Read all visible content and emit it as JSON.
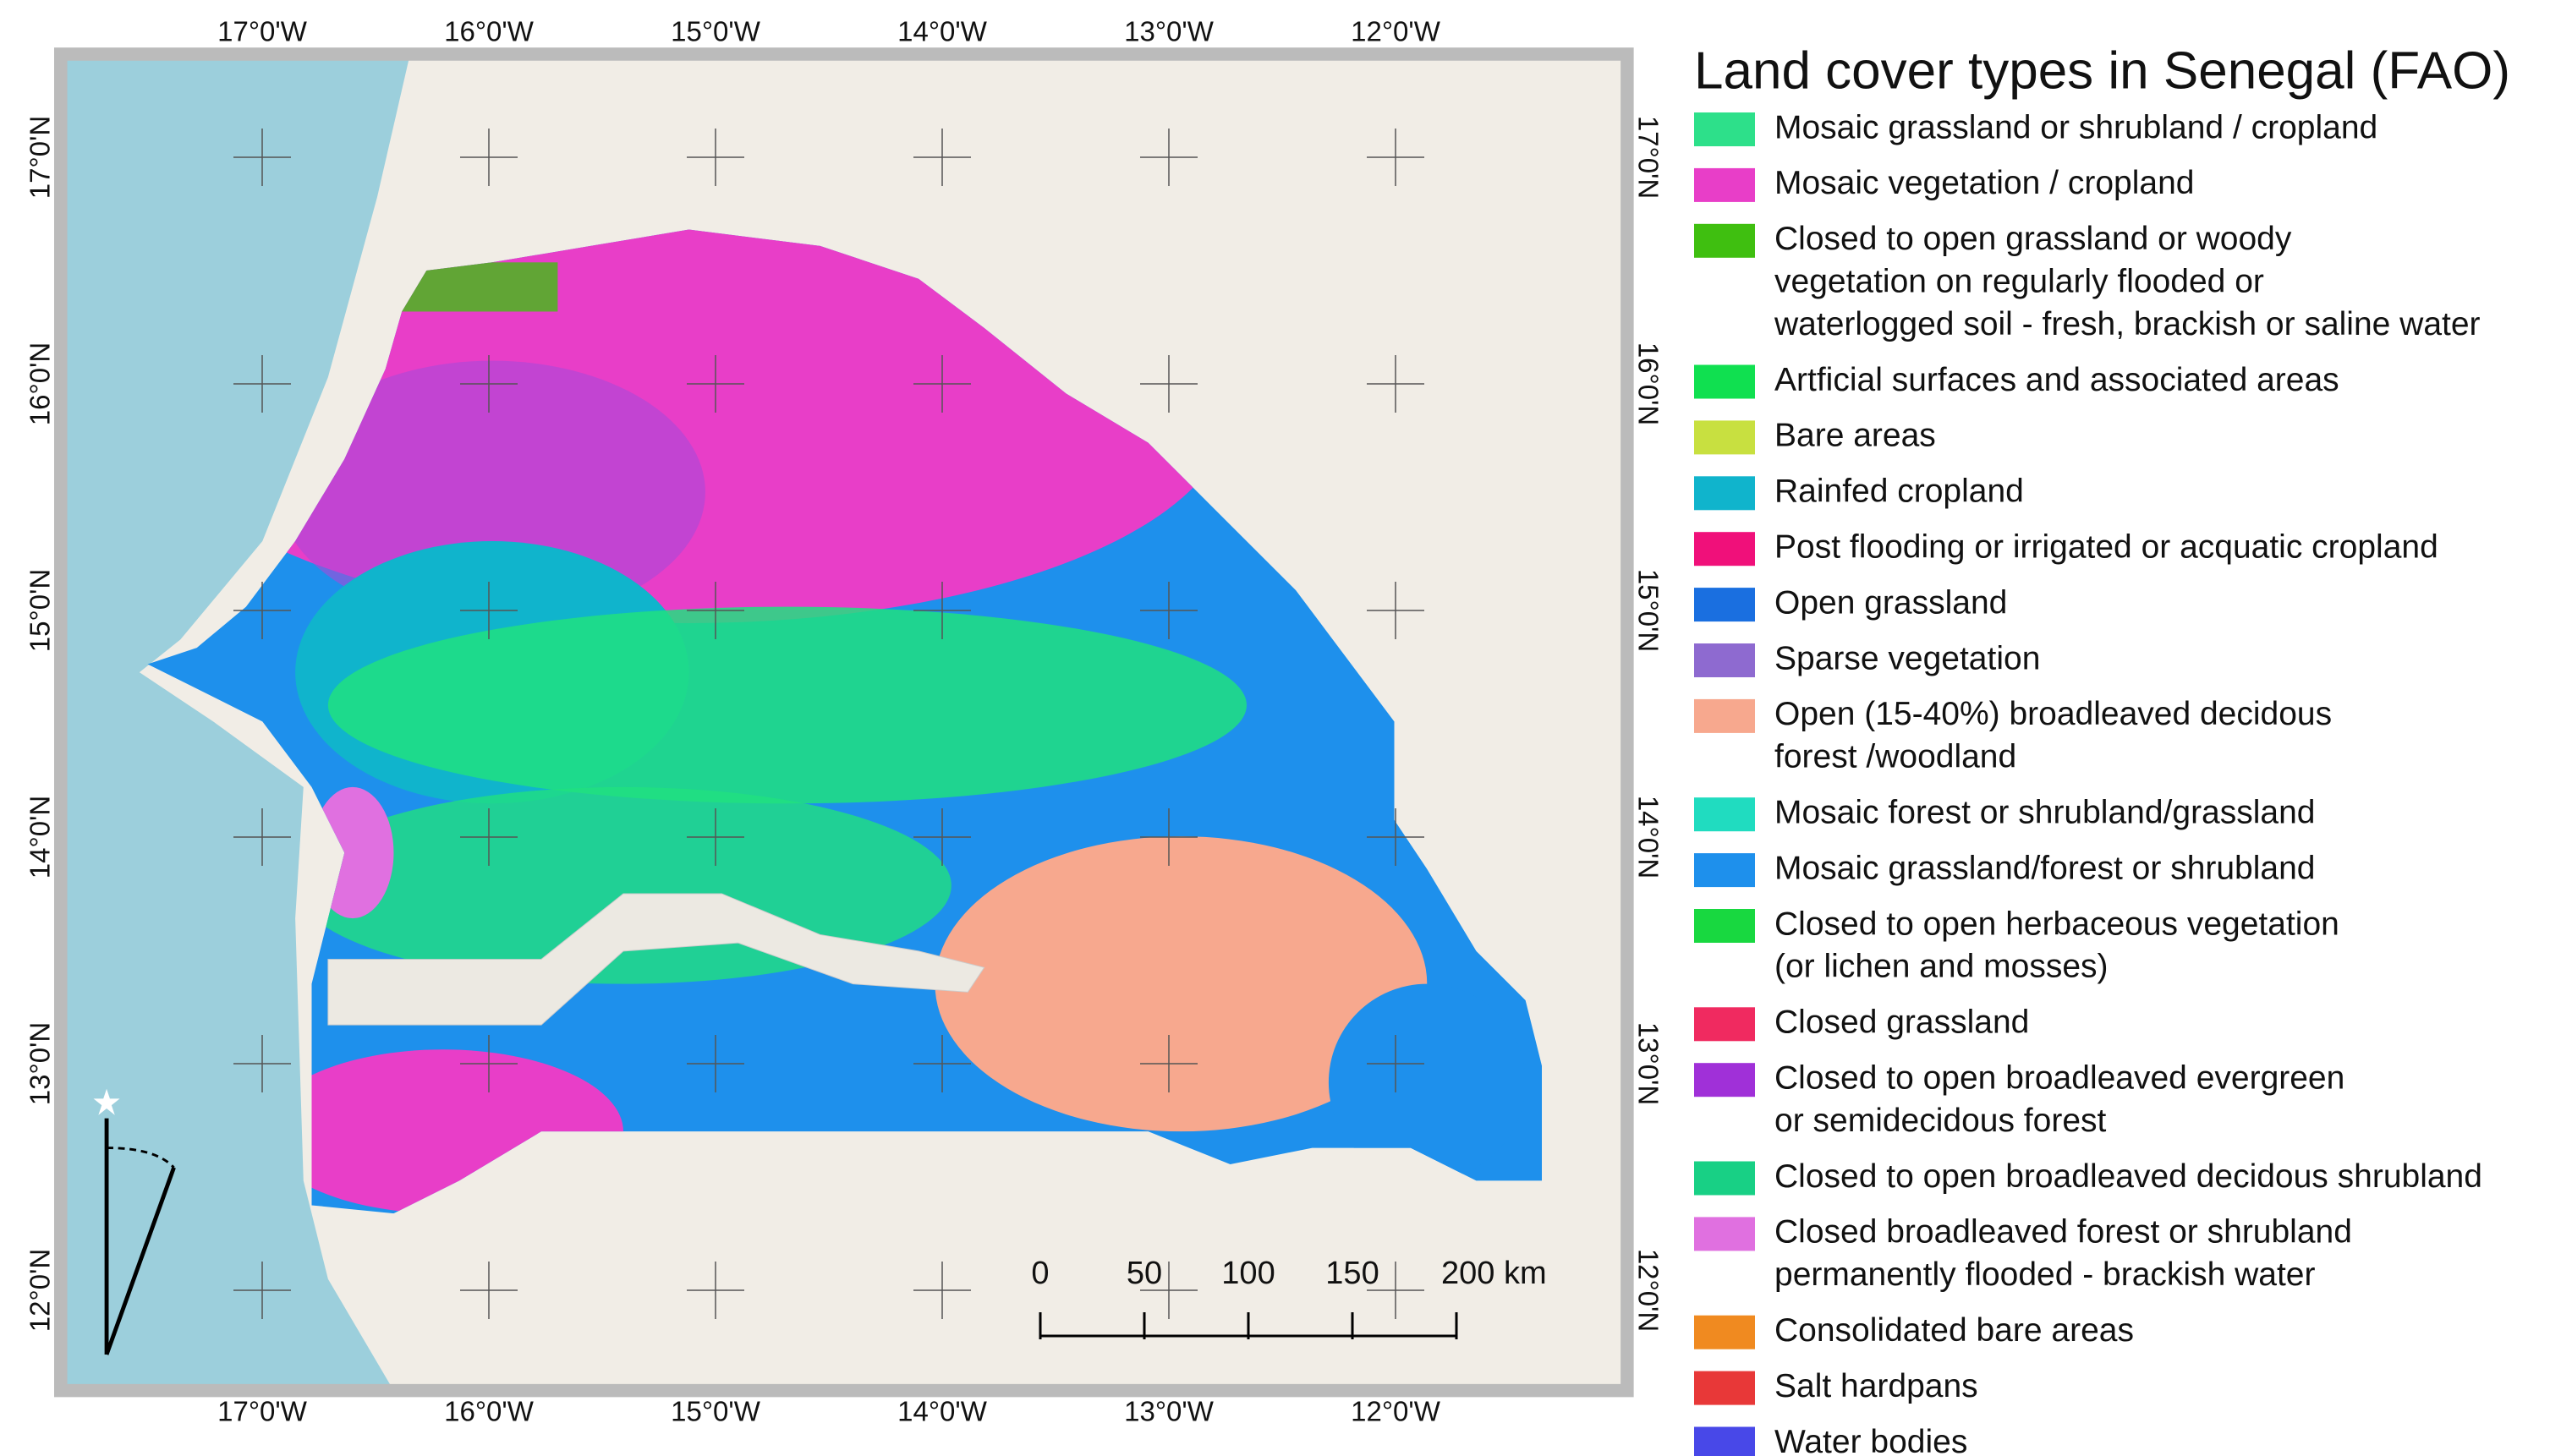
{
  "map": {
    "title": "Land cover types in Senegal (FAO)",
    "longitude_labels": [
      "17°0'W",
      "16°0'W",
      "15°0'W",
      "14°0'W",
      "13°0'W",
      "12°0'W"
    ],
    "latitude_labels": [
      "17°0'N",
      "16°0'N",
      "15°0'N",
      "14°0'N",
      "13°0'N",
      "12°0'N"
    ],
    "scale_bar": [
      "0",
      "50",
      "100",
      "150",
      "200 km"
    ],
    "legend": [
      {
        "color": "#2de08a",
        "lines": [
          "Mosaic grassland or shrubland / cropland"
        ]
      },
      {
        "color": "#e83ec8",
        "lines": [
          "Mosaic vegetation / cropland"
        ]
      },
      {
        "color": "#3fbf10",
        "lines": [
          "Closed to open grassland or woody",
          "vegetation on regularly flooded or",
          "waterlogged soil - fresh, brackish or saline water"
        ]
      },
      {
        "color": "#10e050",
        "lines": [
          "Artficial surfaces and associated areas"
        ]
      },
      {
        "color": "#c8e040",
        "lines": [
          "Bare areas"
        ]
      },
      {
        "color": "#10b4cc",
        "lines": [
          "Rainfed cropland"
        ]
      },
      {
        "color": "#f0107a",
        "lines": [
          "Post flooding or irrigated or acquatic cropland"
        ]
      },
      {
        "color": "#1a6fe0",
        "lines": [
          "Open grassland"
        ]
      },
      {
        "color": "#8e6ad0",
        "lines": [
          "Sparse vegetation"
        ]
      },
      {
        "color": "#f7a88e",
        "lines": [
          "Open (15-40%) broadleaved decidous",
          "forest /woodland"
        ]
      },
      {
        "color": "#20dcc0",
        "lines": [
          "Mosaic forest or shrubland/grassland"
        ]
      },
      {
        "color": "#1e90ec",
        "lines": [
          "Mosaic grassland/forest or shrubland"
        ]
      },
      {
        "color": "#18d840",
        "lines": [
          "Closed to open herbaceous vegetation",
          "(or lichen and mosses)"
        ]
      },
      {
        "color": "#f02a60",
        "lines": [
          "Closed grassland"
        ]
      },
      {
        "color": "#a030d8",
        "lines": [
          "Closed to open broadleaved evergreen",
          "or semidecidous forest"
        ]
      },
      {
        "color": "#18d085",
        "lines": [
          "Closed to open broadleaved decidous shrubland"
        ]
      },
      {
        "color": "#e070e0",
        "lines": [
          "Closed broadleaved forest or shrubland",
          "permanently flooded - brackish water"
        ]
      },
      {
        "color": "#f08a20",
        "lines": [
          "Consolidated bare areas"
        ]
      },
      {
        "color": "#e83838",
        "lines": [
          "Salt hardpans"
        ]
      },
      {
        "color": "#4848e8",
        "lines": [
          "Water bodies"
        ]
      }
    ]
  }
}
